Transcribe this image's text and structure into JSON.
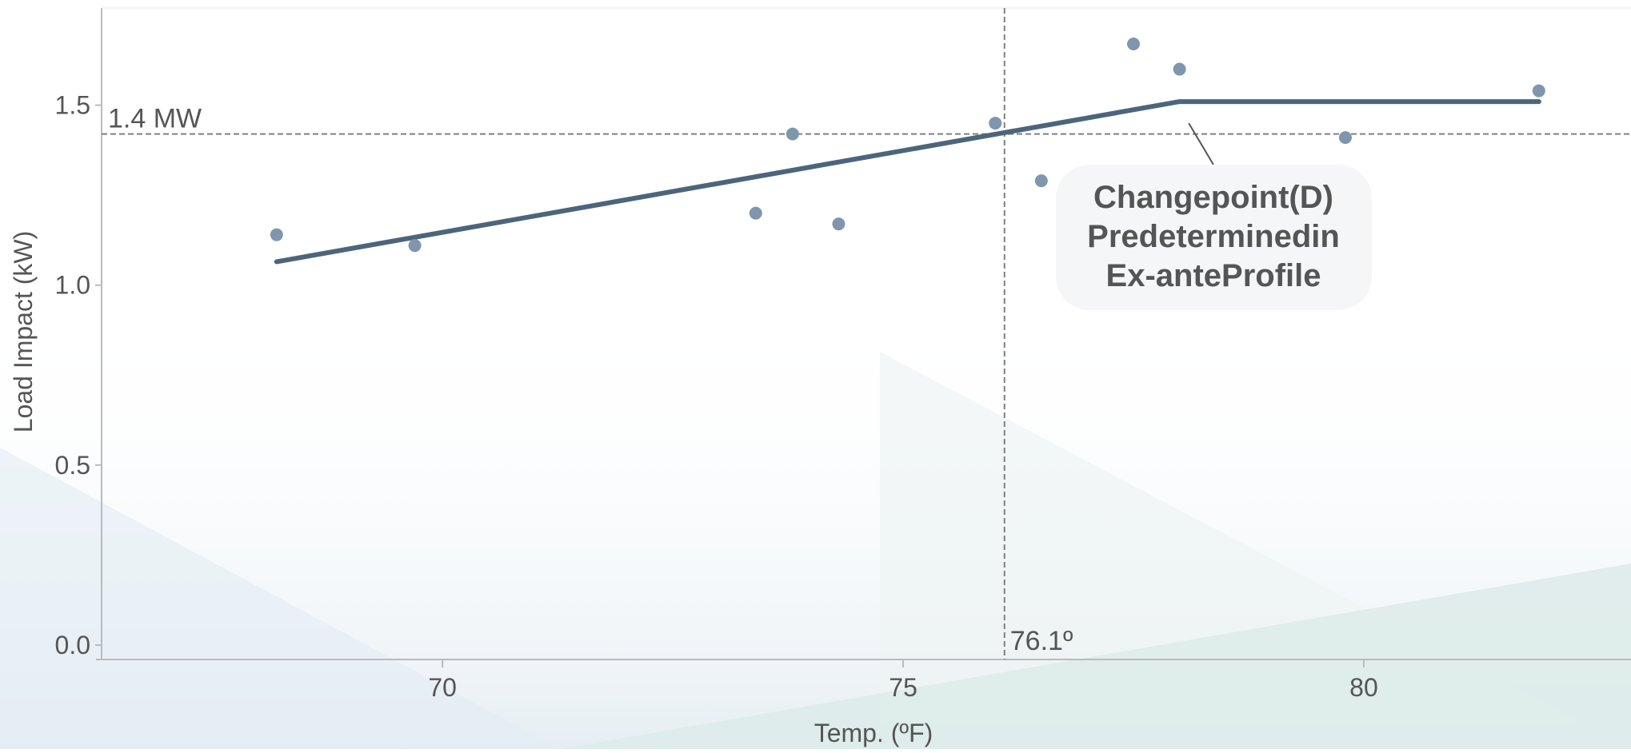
{
  "chart_data": {
    "type": "scatter",
    "xlabel": "Temp. (ºF)",
    "ylabel": "Load Impact (kW)",
    "xlim": [
      66.3,
      82.9
    ],
    "ylim": [
      -0.04,
      1.77
    ],
    "xticks": [
      70,
      75,
      80
    ],
    "xtick_labels": [
      "70",
      "75",
      "80"
    ],
    "yticks": [
      0.0,
      0.5,
      1.0,
      1.5
    ],
    "ytick_labels": [
      "0.0",
      "0.5",
      "1.0",
      "1.5"
    ],
    "grid": false,
    "colors": {
      "point": "#8096ad",
      "line": "#4d657c",
      "reference": "#808080",
      "axis": "#bbbbbb",
      "text": "#555555",
      "callout_bg": "#f5f6f7"
    },
    "points": [
      {
        "x": 68.2,
        "y": 1.14
      },
      {
        "x": 69.7,
        "y": 1.11
      },
      {
        "x": 73.4,
        "y": 1.2
      },
      {
        "x": 73.8,
        "y": 1.42
      },
      {
        "x": 74.3,
        "y": 1.17
      },
      {
        "x": 76.0,
        "y": 1.45
      },
      {
        "x": 76.5,
        "y": 1.29
      },
      {
        "x": 77.5,
        "y": 1.67
      },
      {
        "x": 78.0,
        "y": 1.6
      },
      {
        "x": 79.8,
        "y": 1.41
      },
      {
        "x": 81.9,
        "y": 1.54
      }
    ],
    "fit_line": {
      "x": [
        68.2,
        78.0,
        81.9
      ],
      "y": [
        1.065,
        1.51,
        1.51
      ]
    },
    "reference_lines": [
      {
        "orientation": "horizontal",
        "value": 1.42,
        "label": "1.4 MW"
      },
      {
        "orientation": "vertical",
        "value": 76.1,
        "label": "76.1º"
      }
    ],
    "annotation": {
      "lines": [
        "Changepoint\u0001(D)",
        "Predetermined\u0001in",
        "Ex-ante\u0001Profile"
      ],
      "points_to": {
        "x": 78.1,
        "y": 1.45
      }
    }
  }
}
